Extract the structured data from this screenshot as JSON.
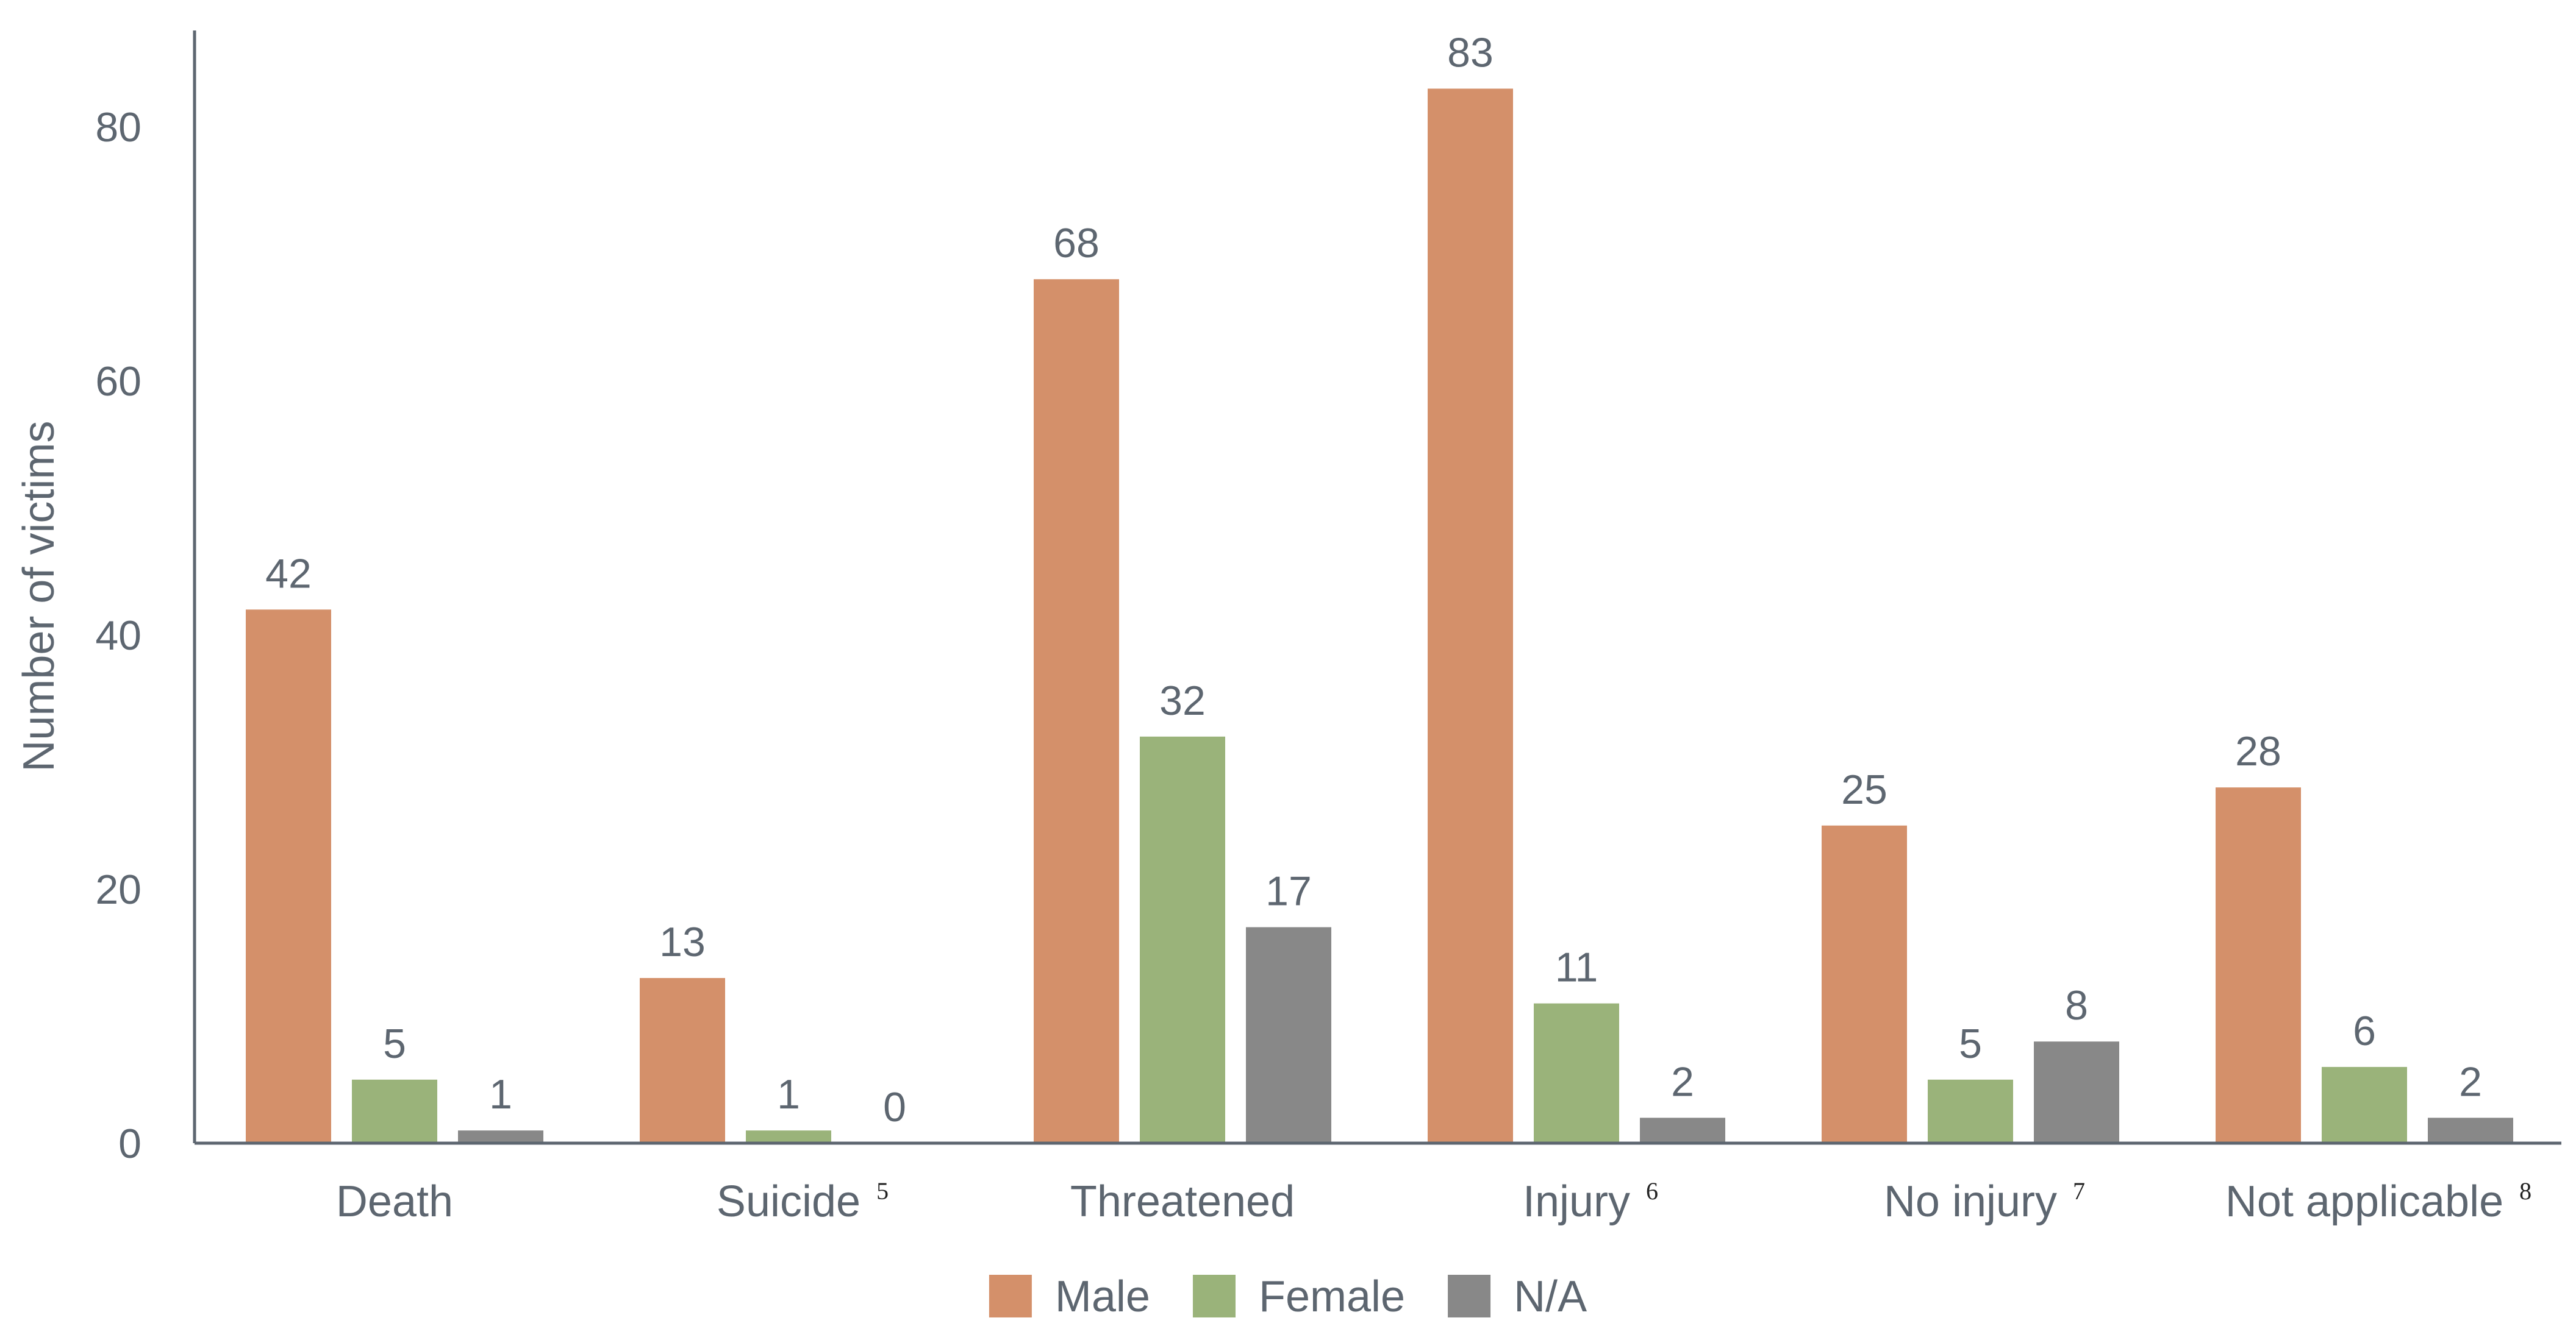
{
  "chart_data": {
    "type": "bar",
    "categories": [
      "Death",
      "Suicide",
      "Threatened",
      "Injury",
      "No injury",
      "Not applicable"
    ],
    "category_footnotes": [
      "",
      "5",
      "",
      "6",
      "7",
      "8"
    ],
    "series": [
      {
        "name": "Male",
        "color": "#d4906a",
        "values": [
          42,
          13,
          68,
          83,
          25,
          28
        ]
      },
      {
        "name": "Female",
        "color": "#9ab37a",
        "values": [
          5,
          1,
          32,
          11,
          5,
          6
        ]
      },
      {
        "name": "N/A",
        "color": "#888888",
        "values": [
          1,
          0,
          17,
          2,
          8,
          2
        ]
      }
    ],
    "ylabel": "Number of victims",
    "xlabel": "",
    "title": "",
    "ylim": [
      0,
      88
    ],
    "yticks": [
      0,
      20,
      40,
      60,
      80
    ],
    "grid": false,
    "legend_position": "bottom-center",
    "axis_color": "#5d6670"
  }
}
